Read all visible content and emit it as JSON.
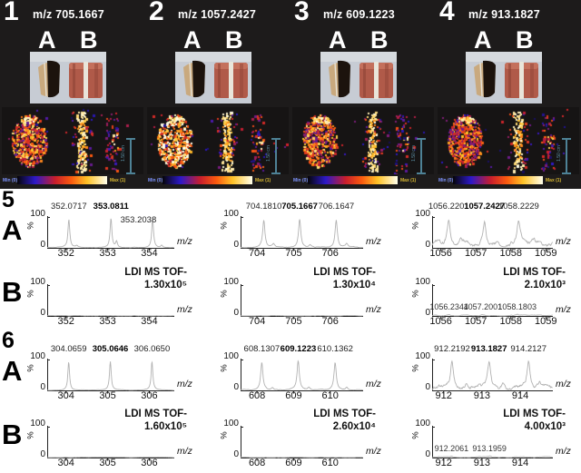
{
  "figure": {
    "colormap": [
      "#050508",
      "#2d19c8",
      "#c81e2d",
      "#fa5a0f",
      "#ffc328",
      "#ffffeb"
    ],
    "axis": {
      "ymax_label": "100",
      "ymin_label": "0",
      "y_unit": "%",
      "x_label": "m/z"
    },
    "top_panels": [
      {
        "number": "1",
        "mz_label": "m/z 705.1667",
        "label_a": "A",
        "label_b": "B",
        "scalebar": "1.50 cm",
        "colorbar_min": "Min (0)",
        "colorbar_max": "Max (1)"
      },
      {
        "number": "2",
        "mz_label": "m/z 1057.2427",
        "label_a": "A",
        "label_b": "B",
        "scalebar": "1.50 cm",
        "colorbar_min": "Min (0)",
        "colorbar_max": "Max (1)"
      },
      {
        "number": "3",
        "mz_label": "m/z 609.1223",
        "label_a": "A",
        "label_b": "B",
        "scalebar": "1.50 cm",
        "colorbar_min": "Min (0)",
        "colorbar_max": "Max (1)"
      },
      {
        "number": "4",
        "mz_label": "m/z 913.1827",
        "label_a": "A",
        "label_b": "B",
        "scalebar": "1.50 cm",
        "colorbar_min": "Min (0)",
        "colorbar_max": "Max (1)"
      }
    ],
    "spectra_sections": [
      {
        "number": "5",
        "rows": [
          {
            "label": "A",
            "cells": [
              {
                "xmin": 351.55,
                "xmax": 354.6,
                "ticks": [
                  "352",
                  "353",
                  "354"
                ],
                "noise": 0.012,
                "pw": 0.0085,
                "peaks": [
                  {
                    "mz": 352.07,
                    "h": 0.95,
                    "label": "352.0717"
                  },
                  {
                    "mz": 352.26,
                    "h": 0.05
                  },
                  {
                    "mz": 353.08,
                    "h": 0.97,
                    "label": "353.0811",
                    "bold": true
                  },
                  {
                    "mz": 353.215,
                    "h": 0.2,
                    "label": "353.2038",
                    "ldx": 24,
                    "ldy": 15
                  },
                  {
                    "mz": 354.08,
                    "h": 0.97
                  },
                  {
                    "mz": 354.3,
                    "h": 0.08
                  }
                ]
              },
              {
                "xmin": 703.55,
                "xmax": 706.9,
                "ticks": [
                  "704",
                  "705",
                  "706"
                ],
                "noise": 0.02,
                "pw": 0.011,
                "peaks": [
                  {
                    "mz": 704.185,
                    "h": 0.92,
                    "label": "704.1810"
                  },
                  {
                    "mz": 704.45,
                    "h": 0.1
                  },
                  {
                    "mz": 705.165,
                    "h": 0.95,
                    "label": "705.1667",
                    "bold": true
                  },
                  {
                    "mz": 705.45,
                    "h": 0.09
                  },
                  {
                    "mz": 706.165,
                    "h": 0.92,
                    "label": "706.1647"
                  },
                  {
                    "mz": 706.45,
                    "h": 0.11
                  }
                ]
              },
              {
                "xmin": 1055.75,
                "xmax": 1059.2,
                "ticks": [
                  "1056",
                  "1057",
                  "1058",
                  "1059"
                ],
                "noise": 0.1,
                "pw": 0.016,
                "peaks": [
                  {
                    "mz": 1055.95,
                    "h": 0.2
                  },
                  {
                    "mz": 1056.225,
                    "h": 0.85,
                    "label": "1056.2201"
                  },
                  {
                    "mz": 1056.55,
                    "h": 0.2
                  },
                  {
                    "mz": 1057.245,
                    "h": 0.8,
                    "label": "1057.2427",
                    "bold": true
                  },
                  {
                    "mz": 1057.62,
                    "h": 0.16
                  },
                  {
                    "mz": 1058.225,
                    "h": 0.78,
                    "label": "1058.2229"
                  },
                  {
                    "mz": 1058.65,
                    "h": 0.14
                  }
                ]
              }
            ]
          },
          {
            "label": "B",
            "cells": [
              {
                "xmin": 351.55,
                "xmax": 354.6,
                "ticks": [
                  "352",
                  "353",
                  "354"
                ],
                "noise": 0.01,
                "pw": 0.01,
                "peaks": [],
                "annotation": {
                  "line1": "LDI MS TOF-",
                  "line2": "1.30x10⁵"
                }
              },
              {
                "xmin": 703.55,
                "xmax": 706.9,
                "ticks": [
                  "704",
                  "705",
                  "706"
                ],
                "noise": 0.01,
                "pw": 0.01,
                "peaks": [],
                "annotation": {
                  "line1": "LDI MS TOF-",
                  "line2": "1.30x10⁴"
                }
              },
              {
                "xmin": 1055.75,
                "xmax": 1059.2,
                "ticks": [
                  "1056",
                  "1057",
                  "1058",
                  "1059"
                ],
                "noise": 0.018,
                "pw": 0.015,
                "peaks": [
                  {
                    "mz": 1056.2344,
                    "h": 0.035
                  },
                  {
                    "mz": 1057.2001,
                    "h": 0.035
                  },
                  {
                    "mz": 1058.1803,
                    "h": 0.03
                  }
                ],
                "base_labels": [
                  {
                    "mz": 1056.2344,
                    "label": "1056.2344"
                  },
                  {
                    "mz": 1057.2001,
                    "label": "1057.2001"
                  },
                  {
                    "mz": 1058.1803,
                    "label": "1058.1803"
                  }
                ],
                "annotation": {
                  "line1": "LDI MS TOF-",
                  "line2": "2.10x10³"
                }
              }
            ]
          }
        ]
      },
      {
        "number": "6",
        "rows": [
          {
            "label": "A",
            "cells": [
              {
                "xmin": 303.55,
                "xmax": 306.6,
                "ticks": [
                  "304",
                  "305",
                  "306"
                ],
                "noise": 0.008,
                "pw": 0.008,
                "peaks": [
                  {
                    "mz": 304.066,
                    "h": 0.95,
                    "label": "304.0659"
                  },
                  {
                    "mz": 305.065,
                    "h": 0.95,
                    "label": "305.0646",
                    "bold": true
                  },
                  {
                    "mz": 306.065,
                    "h": 0.95,
                    "label": "306.0650"
                  }
                ]
              },
              {
                "xmin": 607.55,
                "xmax": 610.9,
                "ticks": [
                  "608",
                  "609",
                  "610"
                ],
                "noise": 0.018,
                "pw": 0.011,
                "peaks": [
                  {
                    "mz": 608.13,
                    "h": 0.93,
                    "label": "608.1307"
                  },
                  {
                    "mz": 608.42,
                    "h": 0.08
                  },
                  {
                    "mz": 609.125,
                    "h": 0.95,
                    "label": "609.1223",
                    "bold": true
                  },
                  {
                    "mz": 609.42,
                    "h": 0.09
                  },
                  {
                    "mz": 610.135,
                    "h": 0.93,
                    "label": "610.1362"
                  },
                  {
                    "mz": 610.45,
                    "h": 0.09
                  }
                ]
              },
              {
                "xmin": 911.7,
                "xmax": 914.85,
                "ticks": [
                  "912",
                  "913",
                  "914"
                ],
                "noise": 0.09,
                "pw": 0.015,
                "peaks": [
                  {
                    "mz": 912.22,
                    "h": 0.9,
                    "label": "912.2192"
                  },
                  {
                    "mz": 912.6,
                    "h": 0.18
                  },
                  {
                    "mz": 913.185,
                    "h": 0.85,
                    "label": "913.1827",
                    "bold": true
                  },
                  {
                    "mz": 913.55,
                    "h": 0.14
                  },
                  {
                    "mz": 914.215,
                    "h": 0.88,
                    "label": "914.2127"
                  },
                  {
                    "mz": 914.5,
                    "h": 0.16
                  }
                ]
              }
            ]
          },
          {
            "label": "B",
            "cells": [
              {
                "xmin": 303.55,
                "xmax": 306.6,
                "ticks": [
                  "304",
                  "305",
                  "306"
                ],
                "noise": 0.01,
                "pw": 0.01,
                "peaks": [],
                "annotation": {
                  "line1": "LDI MS TOF-",
                  "line2": "1.60x10⁵"
                }
              },
              {
                "xmin": 607.55,
                "xmax": 610.9,
                "ticks": [
                  "608",
                  "609",
                  "610"
                ],
                "noise": 0.01,
                "pw": 0.01,
                "peaks": [],
                "annotation": {
                  "line1": "LDI MS TOF-",
                  "line2": "2.60x10⁴"
                }
              },
              {
                "xmin": 911.7,
                "xmax": 914.85,
                "ticks": [
                  "912",
                  "913",
                  "914"
                ],
                "noise": 0.018,
                "pw": 0.015,
                "peaks": [
                  {
                    "mz": 912.2061,
                    "h": 0.03
                  },
                  {
                    "mz": 913.1959,
                    "h": 0.03
                  }
                ],
                "base_labels": [
                  {
                    "mz": 912.2061,
                    "label": "912.2061"
                  },
                  {
                    "mz": 913.1959,
                    "label": "913.1959"
                  }
                ],
                "annotation": {
                  "line1": "LDI MS TOF-",
                  "line2": "4.00x10³"
                }
              }
            ]
          }
        ]
      }
    ]
  }
}
